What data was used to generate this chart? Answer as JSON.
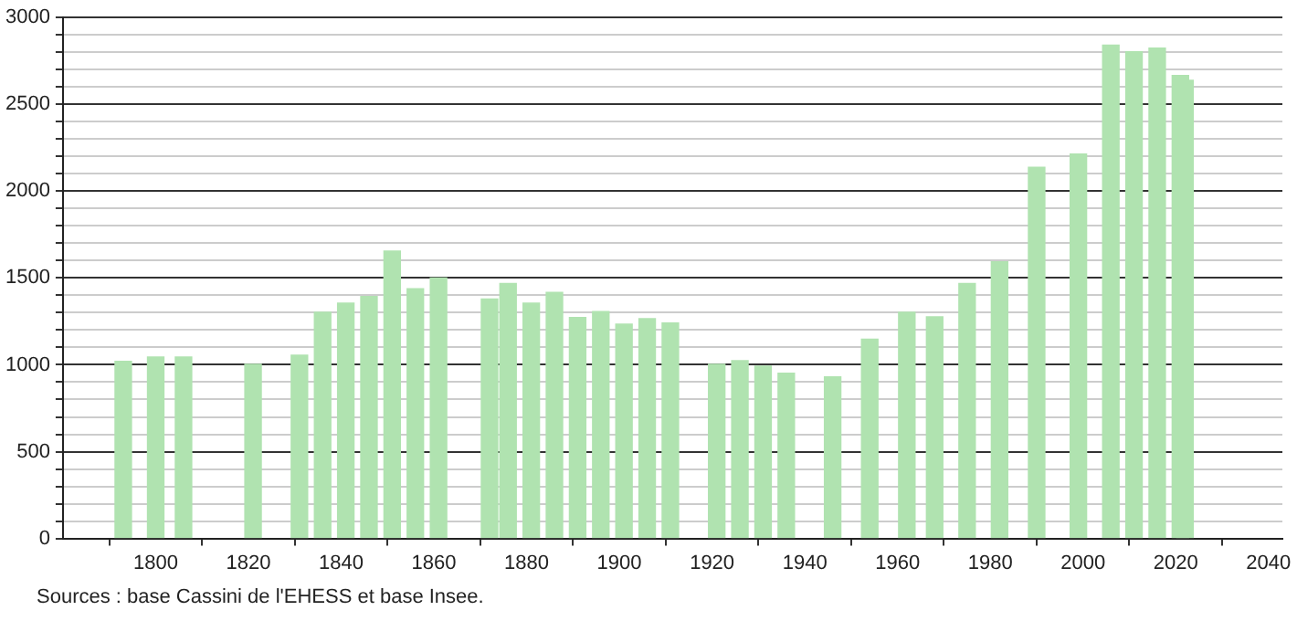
{
  "chart_data": {
    "type": "bar",
    "color": "#b0e3b0",
    "x": [
      1793,
      1800,
      1806,
      1821,
      1831,
      1836,
      1841,
      1846,
      1851,
      1856,
      1861,
      1872,
      1876,
      1881,
      1886,
      1891,
      1896,
      1901,
      1906,
      1911,
      1921,
      1926,
      1931,
      1936,
      1946,
      1954,
      1962,
      1968,
      1975,
      1982,
      1990,
      1999,
      2006,
      2011,
      2016,
      2021,
      2022
    ],
    "values": [
      1020,
      1045,
      1045,
      1003,
      1055,
      1303,
      1355,
      1393,
      1655,
      1438,
      1500,
      1379,
      1469,
      1355,
      1417,
      1272,
      1307,
      1234,
      1266,
      1241,
      1003,
      1024,
      993,
      952,
      931,
      1148,
      1303,
      1276,
      1469,
      1593,
      2138,
      2214,
      2841,
      2803,
      2824,
      2666,
      2638
    ],
    "xlim": [
      1780,
      2043
    ],
    "xticks": [
      1800,
      1820,
      1840,
      1860,
      1880,
      1900,
      1920,
      1940,
      1960,
      1980,
      2000,
      2020,
      2040
    ],
    "ylim": [
      0,
      3000
    ],
    "yticks": [
      0,
      {
        "value": 100,
        "label": null
      },
      {
        "value": 200,
        "label": null
      },
      {
        "value": 300,
        "label": null
      },
      {
        "value": 400,
        "label": null
      },
      500,
      {
        "value": 600,
        "label": null
      },
      {
        "value": 700,
        "label": null
      },
      {
        "value": 800,
        "label": null
      },
      {
        "value": 900,
        "label": null
      },
      1000,
      {
        "value": 1100,
        "label": null
      },
      {
        "value": 1200,
        "label": null
      },
      {
        "value": 1300,
        "label": null
      },
      {
        "value": 1400,
        "label": null
      },
      1500,
      {
        "value": 1600,
        "label": null
      },
      {
        "value": 1700,
        "label": null
      },
      {
        "value": 1800,
        "label": null
      },
      {
        "value": 1900,
        "label": null
      },
      2000,
      {
        "value": 2100,
        "label": null
      },
      {
        "value": 2200,
        "label": null
      },
      {
        "value": 2300,
        "label": null
      },
      {
        "value": 2400,
        "label": null
      },
      2500,
      {
        "value": 2600,
        "label": null
      },
      {
        "value": 2700,
        "label": null
      },
      {
        "value": 2800,
        "label": null
      },
      {
        "value": 2900,
        "label": null
      },
      3000
    ],
    "grid": "y",
    "annotations": [
      "Sources : base Cassini de l'EHESS et base Insee."
    ]
  }
}
